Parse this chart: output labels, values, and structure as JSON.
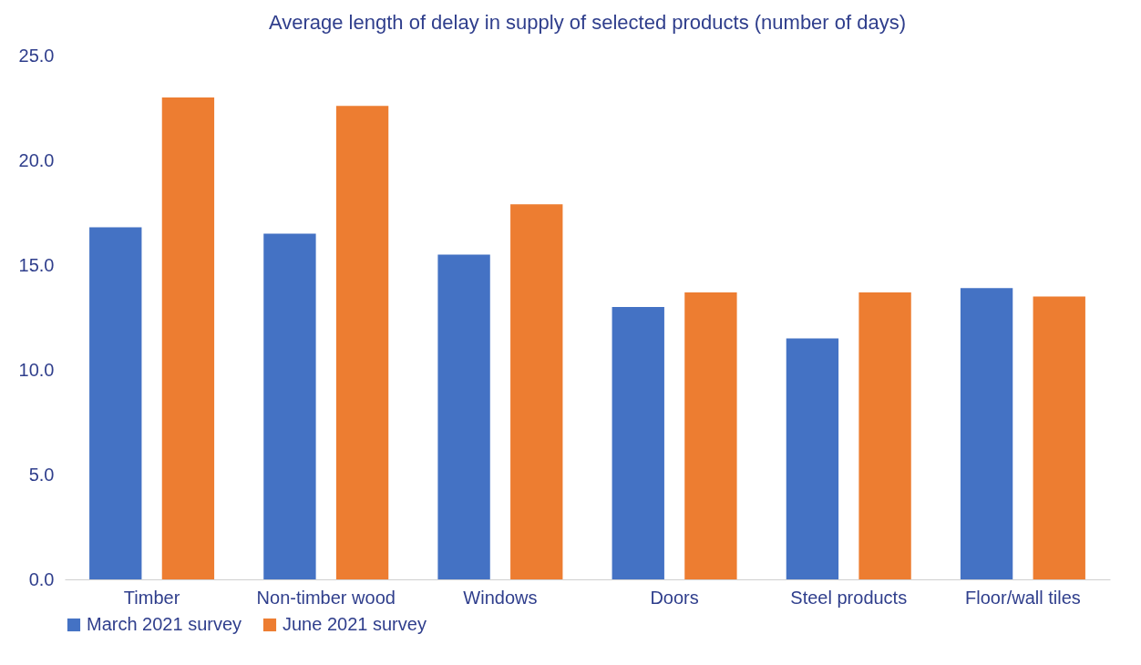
{
  "chart_data": {
    "type": "bar",
    "title": "Average length of delay in supply of selected products (number of days)",
    "categories": [
      "Timber",
      "Non-timber wood",
      "Windows",
      "Doors",
      "Steel products",
      "Floor/wall tiles"
    ],
    "series": [
      {
        "name": "March 2021 survey",
        "color": "#4472c4",
        "values": [
          16.8,
          16.5,
          15.5,
          13.0,
          11.5,
          13.9
        ]
      },
      {
        "name": "June 2021 survey",
        "color": "#ed7d31",
        "values": [
          23.0,
          22.6,
          17.9,
          13.7,
          13.7,
          13.5
        ]
      }
    ],
    "ylim": [
      0,
      25
    ],
    "yticks": [
      {
        "value": 0,
        "label": "0.0"
      },
      {
        "value": 5,
        "label": "5.0"
      },
      {
        "value": 10,
        "label": "10.0"
      },
      {
        "value": 15,
        "label": "15.0"
      },
      {
        "value": 20,
        "label": "20.0"
      },
      {
        "value": 25,
        "label": "25.0"
      }
    ],
    "legend": "bottom"
  }
}
